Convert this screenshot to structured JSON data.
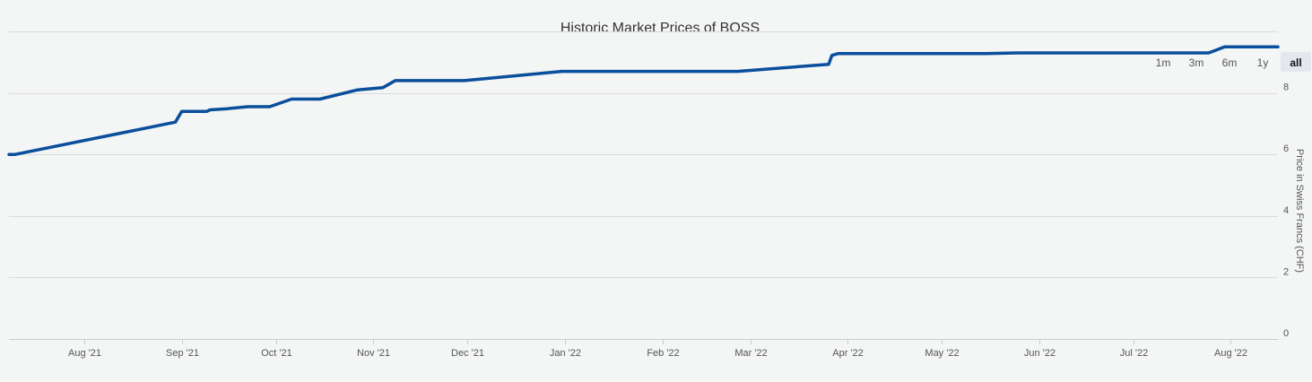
{
  "chart_data": {
    "type": "line",
    "title": "Historic Market Prices of BOSS",
    "ylabel": "Price in Swiss Francs (CHF)",
    "xlabel": "",
    "ylim": [
      0,
      10
    ],
    "yticks": [
      0,
      2,
      4,
      6,
      8
    ],
    "grid": true,
    "legend": "none",
    "line_color": "#0a4f9c",
    "range_buttons": {
      "items": [
        "1m",
        "3m",
        "6m",
        "1y",
        "all"
      ],
      "active": "all"
    },
    "x_ticks": [
      {
        "date": "2021-08-01",
        "label": "Aug '21"
      },
      {
        "date": "2021-09-01",
        "label": "Sep '21"
      },
      {
        "date": "2021-10-01",
        "label": "Oct '21"
      },
      {
        "date": "2021-11-01",
        "label": "Nov '21"
      },
      {
        "date": "2021-12-01",
        "label": "Dec '21"
      },
      {
        "date": "2022-01-01",
        "label": "Jan '22"
      },
      {
        "date": "2022-02-01",
        "label": "Feb '22"
      },
      {
        "date": "2022-03-01",
        "label": "Mar '22"
      },
      {
        "date": "2022-04-01",
        "label": "Apr '22"
      },
      {
        "date": "2022-05-01",
        "label": "May '22"
      },
      {
        "date": "2022-06-01",
        "label": "Jun '22"
      },
      {
        "date": "2022-07-01",
        "label": "Jul '22"
      },
      {
        "date": "2022-08-01",
        "label": "Aug '22"
      }
    ],
    "x_range": [
      "2021-07-08",
      "2022-08-16"
    ],
    "series": [
      {
        "values": [
          {
            "x": "2021-07-08",
            "y": 6.0
          },
          {
            "x": "2021-07-10",
            "y": 6.0
          },
          {
            "x": "2021-08-30",
            "y": 7.05
          },
          {
            "x": "2021-09-01",
            "y": 7.4
          },
          {
            "x": "2021-09-09",
            "y": 7.4
          },
          {
            "x": "2021-09-10",
            "y": 7.45
          },
          {
            "x": "2021-09-15",
            "y": 7.48
          },
          {
            "x": "2021-09-22",
            "y": 7.55
          },
          {
            "x": "2021-09-29",
            "y": 7.55
          },
          {
            "x": "2021-10-06",
            "y": 7.8
          },
          {
            "x": "2021-10-15",
            "y": 7.8
          },
          {
            "x": "2021-10-27",
            "y": 8.1
          },
          {
            "x": "2021-11-04",
            "y": 8.17
          },
          {
            "x": "2021-11-08",
            "y": 8.4
          },
          {
            "x": "2021-11-30",
            "y": 8.4
          },
          {
            "x": "2021-12-31",
            "y": 8.7
          },
          {
            "x": "2022-02-25",
            "y": 8.7
          },
          {
            "x": "2022-03-26",
            "y": 8.93
          },
          {
            "x": "2022-03-27",
            "y": 9.22
          },
          {
            "x": "2022-03-29",
            "y": 9.28
          },
          {
            "x": "2022-04-02",
            "y": 9.28
          },
          {
            "x": "2022-05-15",
            "y": 9.28
          },
          {
            "x": "2022-05-25",
            "y": 9.3
          },
          {
            "x": "2022-07-25",
            "y": 9.3
          },
          {
            "x": "2022-07-30",
            "y": 9.5
          },
          {
            "x": "2022-08-16",
            "y": 9.5
          }
        ]
      }
    ]
  }
}
